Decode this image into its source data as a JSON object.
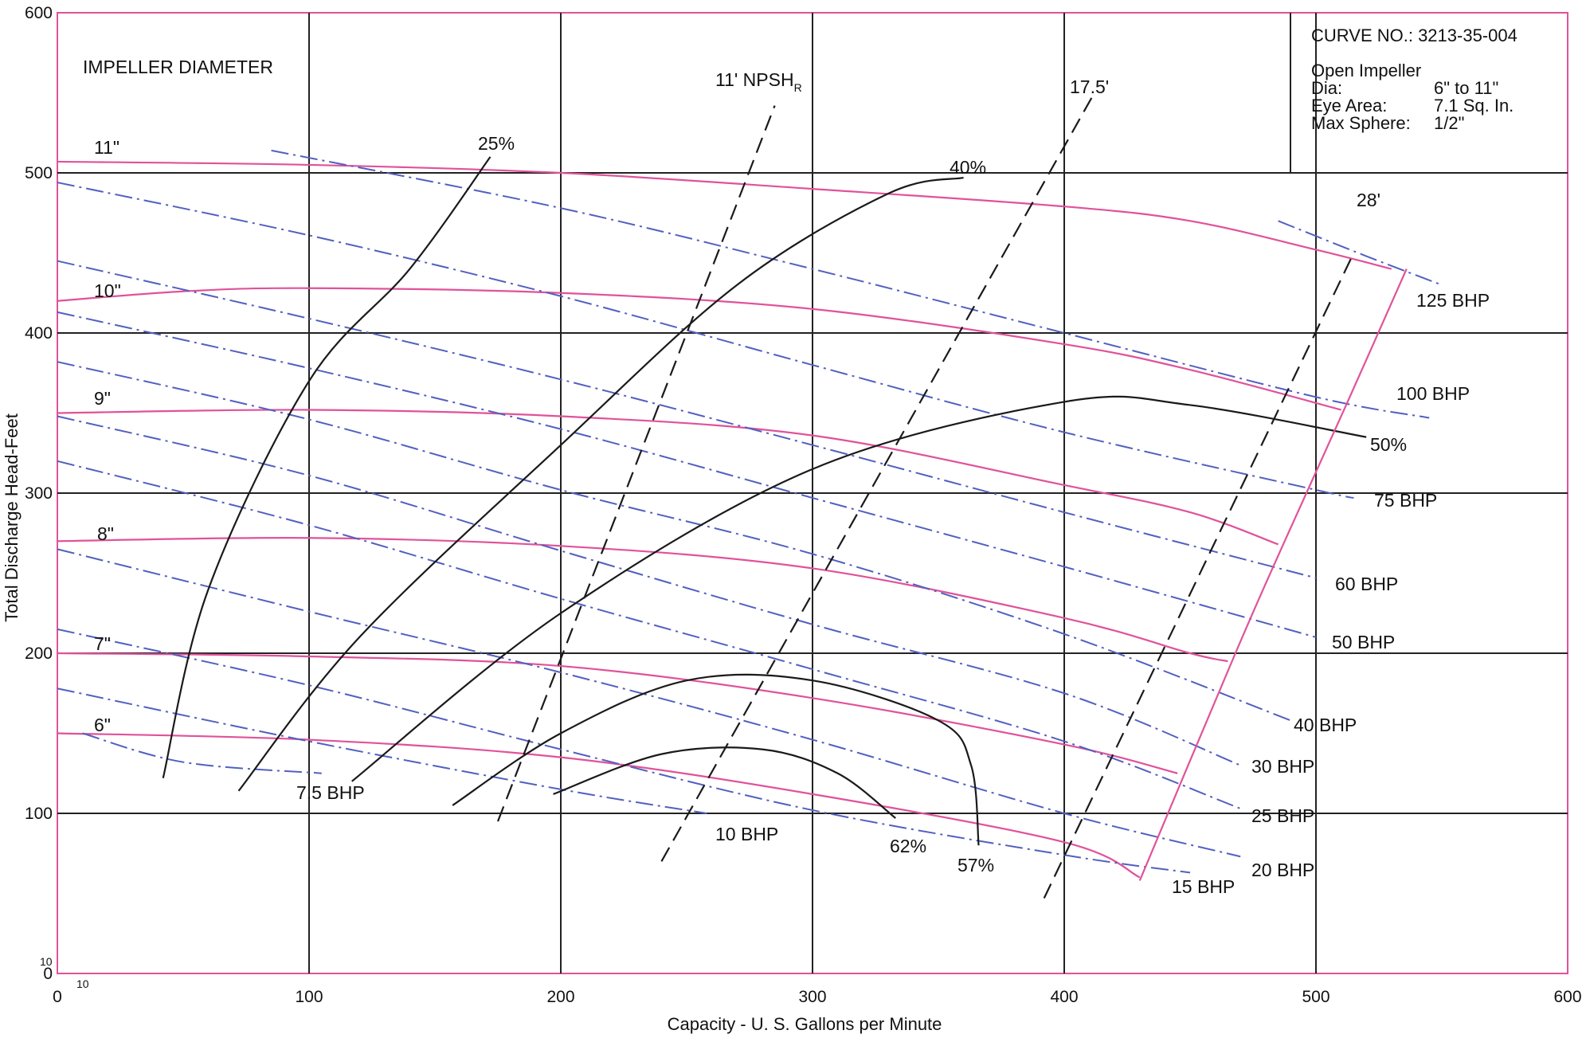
{
  "chart_data": {
    "type": "line",
    "title": "",
    "xlabel": "Capacity - U. S. Gallons per Minute",
    "ylabel": "Total Discharge Head-Feet",
    "xlim": [
      0,
      600
    ],
    "ylim": [
      0,
      600
    ],
    "x_ticks": [
      "0",
      "100",
      "200",
      "300",
      "400",
      "500",
      "600"
    ],
    "y_ticks": [
      "0",
      "100",
      "200",
      "300",
      "400",
      "500",
      "600"
    ],
    "origin_marks": [
      "10",
      "10"
    ],
    "grid": true,
    "colors": {
      "impeller": "#e0529a",
      "bhp": "#5260c0",
      "efficiency": "#1a1a1a",
      "npsh": "#1a1a1a",
      "frame": "#e0529a",
      "grid": "#222222"
    },
    "info": {
      "curve_no": "CURVE NO.:  3213-35-004",
      "impeller_type": "Open Impeller",
      "rows": [
        {
          "label": "Dia:",
          "value": "6\" to 11\""
        },
        {
          "label": "Eye Area:",
          "value": "7.1 Sq. In."
        },
        {
          "label": "Max Sphere:",
          "value": "1/2\""
        }
      ]
    },
    "impeller_diameter_label": "IMPELLER DIAMETER",
    "npsh_label": {
      "text": "11' NPSH",
      "sub": "R"
    },
    "series": [
      {
        "name": "11\"",
        "group": "impeller",
        "points": [
          [
            0,
            507
          ],
          [
            100,
            505
          ],
          [
            200,
            500
          ],
          [
            300,
            490
          ],
          [
            400,
            479
          ],
          [
            450,
            470
          ],
          [
            500,
            452
          ],
          [
            530,
            440
          ]
        ]
      },
      {
        "name": "10\"",
        "group": "impeller",
        "points": [
          [
            0,
            420
          ],
          [
            50,
            426
          ],
          [
            100,
            428
          ],
          [
            200,
            425
          ],
          [
            300,
            415
          ],
          [
            400,
            393
          ],
          [
            450,
            377
          ],
          [
            510,
            352
          ]
        ]
      },
      {
        "name": "9\"",
        "group": "impeller",
        "points": [
          [
            0,
            350
          ],
          [
            100,
            352
          ],
          [
            200,
            348
          ],
          [
            300,
            336
          ],
          [
            400,
            305
          ],
          [
            450,
            288
          ],
          [
            485,
            268
          ]
        ]
      },
      {
        "name": "8\"",
        "group": "impeller",
        "points": [
          [
            0,
            270
          ],
          [
            100,
            272
          ],
          [
            200,
            267
          ],
          [
            300,
            253
          ],
          [
            400,
            222
          ],
          [
            450,
            200
          ],
          [
            465,
            195
          ]
        ]
      },
      {
        "name": "7\"",
        "group": "impeller",
        "points": [
          [
            0,
            200
          ],
          [
            100,
            198
          ],
          [
            200,
            192
          ],
          [
            300,
            172
          ],
          [
            400,
            143
          ],
          [
            445,
            125
          ]
        ]
      },
      {
        "name": "6\"",
        "group": "impeller",
        "points": [
          [
            0,
            150
          ],
          [
            100,
            146
          ],
          [
            200,
            135
          ],
          [
            300,
            112
          ],
          [
            400,
            82
          ],
          [
            430,
            60
          ]
        ]
      },
      {
        "name": "125 BHP",
        "group": "bhp",
        "points": [
          [
            485,
            470
          ],
          [
            520,
            448
          ],
          [
            550,
            430
          ]
        ]
      },
      {
        "name": "100 BHP",
        "group": "bhp",
        "points": [
          [
            85,
            514
          ],
          [
            200,
            478
          ],
          [
            300,
            440
          ],
          [
            400,
            400
          ],
          [
            500,
            360
          ],
          [
            545,
            347
          ]
        ]
      },
      {
        "name": "75 BHP",
        "group": "bhp",
        "points": [
          [
            0,
            494
          ],
          [
            100,
            461
          ],
          [
            200,
            423
          ],
          [
            300,
            380
          ],
          [
            400,
            338
          ],
          [
            500,
            302
          ],
          [
            515,
            297
          ]
        ]
      },
      {
        "name": "60 BHP",
        "group": "bhp",
        "points": [
          [
            0,
            445
          ],
          [
            100,
            409
          ],
          [
            200,
            371
          ],
          [
            300,
            330
          ],
          [
            400,
            288
          ],
          [
            500,
            247
          ]
        ]
      },
      {
        "name": "50 BHP",
        "group": "bhp",
        "points": [
          [
            0,
            413
          ],
          [
            100,
            378
          ],
          [
            200,
            340
          ],
          [
            300,
            297
          ],
          [
            400,
            254
          ],
          [
            500,
            210
          ]
        ]
      },
      {
        "name": "40 BHP",
        "group": "bhp",
        "points": [
          [
            0,
            382
          ],
          [
            100,
            346
          ],
          [
            200,
            302
          ],
          [
            300,
            262
          ],
          [
            400,
            212
          ],
          [
            490,
            158
          ]
        ]
      },
      {
        "name": "30 BHP",
        "group": "bhp",
        "points": [
          [
            0,
            348
          ],
          [
            100,
            311
          ],
          [
            200,
            264
          ],
          [
            300,
            218
          ],
          [
            400,
            175
          ],
          [
            470,
            130
          ]
        ]
      },
      {
        "name": "25 BHP",
        "group": "bhp",
        "points": [
          [
            0,
            320
          ],
          [
            100,
            280
          ],
          [
            200,
            234
          ],
          [
            300,
            190
          ],
          [
            400,
            145
          ],
          [
            470,
            103
          ]
        ]
      },
      {
        "name": "20 BHP",
        "group": "bhp",
        "points": [
          [
            0,
            265
          ],
          [
            100,
            226
          ],
          [
            200,
            188
          ],
          [
            300,
            146
          ],
          [
            400,
            100
          ],
          [
            470,
            73
          ]
        ]
      },
      {
        "name": "15 BHP",
        "group": "bhp",
        "points": [
          [
            0,
            215
          ],
          [
            100,
            180
          ],
          [
            200,
            140
          ],
          [
            300,
            102
          ],
          [
            400,
            74
          ],
          [
            450,
            63
          ]
        ]
      },
      {
        "name": "10 BHP",
        "group": "bhp",
        "points": [
          [
            0,
            178
          ],
          [
            100,
            145
          ],
          [
            200,
            115
          ],
          [
            258,
            100
          ]
        ]
      },
      {
        "name": "7.5 BHP",
        "group": "bhp",
        "points": [
          [
            10,
            150
          ],
          [
            50,
            132
          ],
          [
            105,
            125
          ]
        ]
      },
      {
        "name": "25%",
        "group": "efficiency",
        "points": [
          [
            42,
            122
          ],
          [
            60,
            240
          ],
          [
            100,
            370
          ],
          [
            140,
            440
          ],
          [
            172,
            510
          ]
        ]
      },
      {
        "name": "40%",
        "group": "efficiency",
        "points": [
          [
            72,
            114
          ],
          [
            120,
            210
          ],
          [
            200,
            330
          ],
          [
            270,
            430
          ],
          [
            330,
            487
          ],
          [
            360,
            497
          ]
        ]
      },
      {
        "name": "50%",
        "group": "efficiency",
        "points": [
          [
            117,
            120
          ],
          [
            200,
            225
          ],
          [
            300,
            315
          ],
          [
            400,
            357
          ],
          [
            450,
            355
          ],
          [
            520,
            335
          ]
        ]
      },
      {
        "name": "57%",
        "group": "efficiency",
        "points": [
          [
            157,
            105
          ],
          [
            200,
            150
          ],
          [
            250,
            183
          ],
          [
            300,
            183
          ],
          [
            350,
            158
          ],
          [
            363,
            130
          ],
          [
            366,
            80
          ]
        ]
      },
      {
        "name": "62%",
        "group": "efficiency",
        "points": [
          [
            197,
            112
          ],
          [
            240,
            137
          ],
          [
            280,
            140
          ],
          [
            310,
            125
          ],
          [
            333,
            97
          ]
        ]
      },
      {
        "name": "",
        "group": "npsh",
        "points": [
          [
            175,
            95
          ],
          [
            285,
            542
          ]
        ]
      },
      {
        "name": "17.5'",
        "group": "npsh",
        "points": [
          [
            240,
            70
          ],
          [
            412,
            550
          ]
        ]
      },
      {
        "name": "28'",
        "group": "npsh",
        "points": [
          [
            392,
            47
          ],
          [
            515,
            450
          ]
        ]
      },
      {
        "name": "",
        "group": "envelope",
        "points": [
          [
            430,
            58
          ],
          [
            468,
            200
          ],
          [
            487,
            268
          ],
          [
            512,
            355
          ],
          [
            536,
            440
          ]
        ]
      }
    ],
    "labels": {
      "impeller": [
        {
          "name": "11\""
        },
        {
          "name": "10\""
        },
        {
          "name": "9\""
        },
        {
          "name": "8\""
        },
        {
          "name": "7\""
        },
        {
          "name": "6\""
        }
      ],
      "bhp": [
        {
          "name": "125 BHP"
        },
        {
          "name": "100 BHP"
        },
        {
          "name": "75 BHP"
        },
        {
          "name": "60 BHP"
        },
        {
          "name": "50 BHP"
        },
        {
          "name": "40 BHP"
        },
        {
          "name": "30 BHP"
        },
        {
          "name": "25 BHP"
        },
        {
          "name": "20 BHP"
        },
        {
          "name": "15 BHP"
        },
        {
          "name": "10 BHP"
        },
        {
          "name": "7.5 BHP"
        }
      ],
      "efficiency": [
        {
          "name": "25%"
        },
        {
          "name": "40%"
        },
        {
          "name": "50%"
        },
        {
          "name": "57%"
        },
        {
          "name": "62%"
        }
      ],
      "npsh": [
        {
          "name": "17.5'"
        },
        {
          "name": "28'"
        }
      ]
    }
  }
}
